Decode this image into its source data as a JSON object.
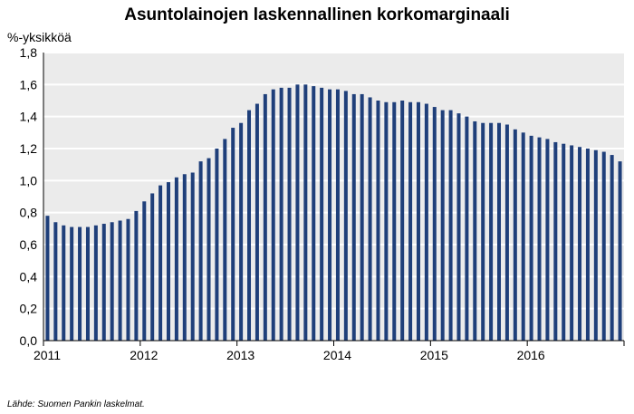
{
  "title": "Asuntolainojen laskennallinen korkomarginaali",
  "y_unit": "%-yksikköä",
  "source": "Lähde: Suomen Pankin laskelmat.",
  "colors": {
    "bar": "#1f3f7a",
    "plot_background": "#ebebeb",
    "grid": "#ffffff",
    "axis": "#000000"
  },
  "chart_data": {
    "type": "bar",
    "title": "Asuntolainojen laskennallinen korkomarginaali",
    "ylabel": "%-yksikköä",
    "xlabel": "",
    "ylim": [
      0,
      1.8
    ],
    "yticks": [
      "0,0",
      "0,2",
      "0,4",
      "0,6",
      "0,8",
      "1,0",
      "1,2",
      "1,4",
      "1,6",
      "1,8"
    ],
    "x_tick_labels": [
      "2011",
      "2012",
      "2013",
      "2014",
      "2015",
      "2016"
    ],
    "grid": true,
    "frequency": "monthly",
    "categories": [
      "2011-01",
      "2011-02",
      "2011-03",
      "2011-04",
      "2011-05",
      "2011-06",
      "2011-07",
      "2011-08",
      "2011-09",
      "2011-10",
      "2011-11",
      "2011-12",
      "2012-01",
      "2012-02",
      "2012-03",
      "2012-04",
      "2012-05",
      "2012-06",
      "2012-07",
      "2012-08",
      "2012-09",
      "2012-10",
      "2012-11",
      "2012-12",
      "2013-01",
      "2013-02",
      "2013-03",
      "2013-04",
      "2013-05",
      "2013-06",
      "2013-07",
      "2013-08",
      "2013-09",
      "2013-10",
      "2013-11",
      "2013-12",
      "2014-01",
      "2014-02",
      "2014-03",
      "2014-04",
      "2014-05",
      "2014-06",
      "2014-07",
      "2014-08",
      "2014-09",
      "2014-10",
      "2014-11",
      "2014-12",
      "2015-01",
      "2015-02",
      "2015-03",
      "2015-04",
      "2015-05",
      "2015-06",
      "2015-07",
      "2015-08",
      "2015-09",
      "2015-10",
      "2015-11",
      "2015-12",
      "2016-01",
      "2016-02",
      "2016-03",
      "2016-04",
      "2016-05",
      "2016-06",
      "2016-07",
      "2016-08",
      "2016-09",
      "2016-10",
      "2016-11",
      "2016-12"
    ],
    "values": [
      0.78,
      0.74,
      0.72,
      0.71,
      0.71,
      0.71,
      0.72,
      0.73,
      0.74,
      0.75,
      0.76,
      0.81,
      0.87,
      0.92,
      0.97,
      0.99,
      1.02,
      1.04,
      1.05,
      1.12,
      1.14,
      1.2,
      1.26,
      1.33,
      1.36,
      1.44,
      1.48,
      1.54,
      1.57,
      1.58,
      1.58,
      1.6,
      1.6,
      1.59,
      1.58,
      1.57,
      1.57,
      1.56,
      1.54,
      1.54,
      1.52,
      1.5,
      1.49,
      1.49,
      1.5,
      1.49,
      1.49,
      1.48,
      1.46,
      1.44,
      1.44,
      1.42,
      1.4,
      1.37,
      1.36,
      1.36,
      1.36,
      1.35,
      1.32,
      1.3,
      1.28,
      1.27,
      1.26,
      1.24,
      1.23,
      1.22,
      1.21,
      1.2,
      1.19,
      1.18,
      1.16,
      1.12
    ]
  }
}
